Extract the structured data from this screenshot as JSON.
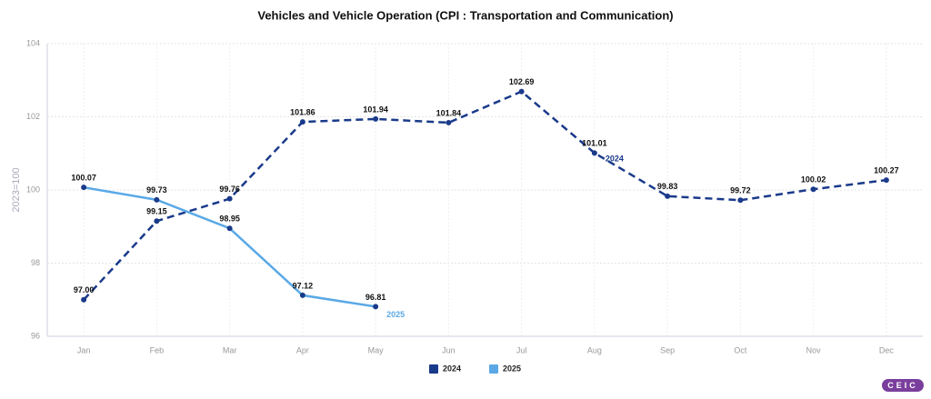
{
  "chart_data": {
    "type": "line",
    "title": "Vehicles and Vehicle Operation (CPI : Transportation and Communication)",
    "y_label": "2023=100",
    "categories": [
      "Jan",
      "Feb",
      "Mar",
      "Apr",
      "May",
      "Jun",
      "Jul",
      "Aug",
      "Sep",
      "Oct",
      "Nov",
      "Dec"
    ],
    "series": [
      {
        "name": "2024",
        "color": "#1a3a8a",
        "dashed": true,
        "values": [
          97.0,
          99.15,
          99.76,
          101.86,
          101.94,
          101.84,
          102.69,
          101.01,
          99.83,
          99.72,
          100.02,
          100.27
        ],
        "value_labels": [
          "97.00",
          "99.15",
          "99.76",
          "101.86",
          "101.94",
          "101.84",
          "102.69",
          "101.01",
          "99.83",
          "99.72",
          "100.02",
          "100.27"
        ]
      },
      {
        "name": "2025",
        "color": "#5aa9e6",
        "dashed": false,
        "values": [
          100.07,
          99.73,
          98.95,
          97.12,
          96.81,
          null,
          null,
          null,
          null,
          null,
          null,
          null
        ]
      }
    ],
    "ylim": [
      96,
      104
    ],
    "yticks": [
      96,
      98,
      100,
      102,
      104
    ],
    "grid": true,
    "legend": "bottom",
    "logo": "CEIC"
  }
}
